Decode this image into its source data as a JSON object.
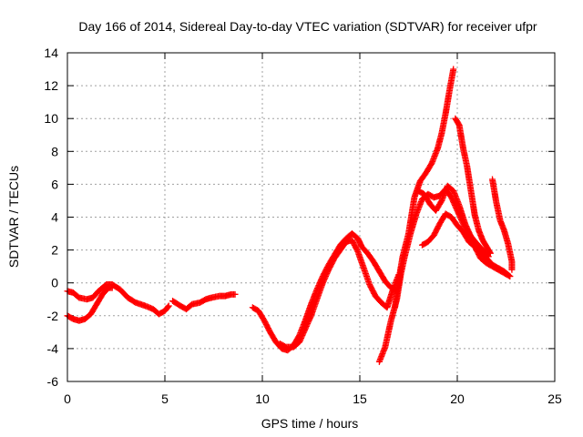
{
  "chart_data": {
    "type": "scatter",
    "title": "Day 166 of 2014, Sidereal Day-to-day VTEC variation (SDTVAR) for receiver ufpr",
    "xlabel": "GPS time / hours",
    "ylabel": "SDTVAR / TECUs",
    "xlim": [
      0,
      25
    ],
    "ylim": [
      -6,
      14
    ],
    "x_ticks": [
      "0",
      "5",
      "10",
      "15",
      "20",
      "25"
    ],
    "y_ticks": [
      "-6",
      "-4",
      "-2",
      "0",
      "2",
      "4",
      "6",
      "8",
      "10",
      "12",
      "14"
    ],
    "x_tick_values": [
      0,
      5,
      10,
      15,
      20,
      25
    ],
    "y_tick_values": [
      -6,
      -4,
      -2,
      0,
      2,
      4,
      6,
      8,
      10,
      12,
      14
    ],
    "grid": true,
    "marker": "+",
    "series": [
      {
        "color": "#ff0000",
        "segments": [
          [
            [
              0.0,
              -0.5
            ],
            [
              0.3,
              -0.6
            ],
            [
              0.6,
              -0.9
            ],
            [
              1.0,
              -1.0
            ],
            [
              1.3,
              -0.9
            ],
            [
              1.6,
              -0.5
            ],
            [
              2.0,
              -0.1
            ],
            [
              2.3,
              -0.1
            ],
            [
              2.7,
              -0.4
            ],
            [
              3.1,
              -0.9
            ],
            [
              3.5,
              -1.2
            ],
            [
              4.0,
              -1.4
            ],
            [
              4.4,
              -1.6
            ],
            [
              4.7,
              -1.9
            ],
            [
              5.0,
              -1.7
            ],
            [
              5.2,
              -1.4
            ]
          ],
          [
            [
              0.0,
              -2.0
            ],
            [
              0.3,
              -2.2
            ],
            [
              0.6,
              -2.3
            ],
            [
              0.9,
              -2.2
            ],
            [
              1.2,
              -1.9
            ],
            [
              1.5,
              -1.3
            ],
            [
              1.8,
              -0.7
            ],
            [
              2.1,
              -0.3
            ],
            [
              2.3,
              -0.3
            ]
          ],
          [
            [
              5.4,
              -1.1
            ],
            [
              5.8,
              -1.4
            ],
            [
              6.1,
              -1.6
            ],
            [
              6.4,
              -1.3
            ],
            [
              6.8,
              -1.2
            ],
            [
              7.1,
              -1.0
            ],
            [
              7.4,
              -0.9
            ],
            [
              7.8,
              -0.8
            ],
            [
              8.1,
              -0.8
            ],
            [
              8.4,
              -0.7
            ],
            [
              8.6,
              -0.7
            ]
          ],
          [
            [
              9.5,
              -1.5
            ],
            [
              9.8,
              -1.7
            ],
            [
              10.1,
              -2.3
            ],
            [
              10.4,
              -3.0
            ],
            [
              10.7,
              -3.6
            ],
            [
              11.0,
              -4.0
            ],
            [
              11.3,
              -4.1
            ],
            [
              11.6,
              -3.8
            ],
            [
              11.9,
              -3.2
            ],
            [
              12.2,
              -2.3
            ],
            [
              12.5,
              -1.3
            ],
            [
              12.8,
              -0.4
            ],
            [
              13.1,
              0.4
            ],
            [
              13.4,
              1.1
            ],
            [
              13.7,
              1.7
            ],
            [
              14.0,
              2.3
            ],
            [
              14.3,
              2.7
            ],
            [
              14.6,
              3.0
            ],
            [
              14.9,
              2.7
            ],
            [
              15.1,
              2.2
            ],
            [
              15.4,
              1.8
            ],
            [
              15.7,
              1.3
            ],
            [
              16.0,
              0.7
            ],
            [
              16.3,
              0.1
            ],
            [
              16.6,
              -0.3
            ],
            [
              16.9,
              -0.5
            ]
          ],
          [
            [
              10.9,
              -3.7
            ],
            [
              11.2,
              -3.9
            ],
            [
              11.6,
              -3.9
            ],
            [
              11.9,
              -3.6
            ],
            [
              12.2,
              -2.8
            ],
            [
              12.5,
              -2.0
            ],
            [
              12.8,
              -1.0
            ],
            [
              13.1,
              0.0
            ],
            [
              13.4,
              0.8
            ],
            [
              13.7,
              1.5
            ],
            [
              14.0,
              2.0
            ],
            [
              14.3,
              2.5
            ],
            [
              14.6,
              2.6
            ],
            [
              14.9,
              1.9
            ],
            [
              15.2,
              0.9
            ],
            [
              15.5,
              -0.1
            ],
            [
              15.8,
              -0.8
            ],
            [
              16.1,
              -1.2
            ],
            [
              16.4,
              -1.5
            ],
            [
              16.7,
              -0.4
            ],
            [
              17.0,
              0.5
            ]
          ],
          [
            [
              16.0,
              -4.8
            ],
            [
              16.3,
              -3.9
            ],
            [
              16.6,
              -2.3
            ],
            [
              16.9,
              -1.0
            ],
            [
              17.1,
              0.5
            ],
            [
              17.3,
              1.6
            ],
            [
              17.6,
              3.0
            ],
            [
              17.9,
              4.2
            ],
            [
              18.2,
              5.1
            ],
            [
              18.5,
              5.4
            ],
            [
              18.8,
              5.2
            ],
            [
              19.1,
              5.3
            ],
            [
              19.4,
              5.7
            ],
            [
              19.7,
              5.2
            ],
            [
              20.0,
              4.4
            ],
            [
              20.3,
              3.6
            ],
            [
              20.6,
              3.0
            ],
            [
              20.9,
              2.5
            ],
            [
              21.2,
              1.9
            ],
            [
              21.5,
              1.5
            ],
            [
              21.8,
              1.1
            ],
            [
              22.1,
              0.9
            ],
            [
              22.4,
              0.7
            ],
            [
              22.7,
              0.4
            ]
          ],
          [
            [
              16.8,
              -1.5
            ],
            [
              17.0,
              0.2
            ],
            [
              17.2,
              1.6
            ],
            [
              17.5,
              3.0
            ],
            [
              17.8,
              5.2
            ],
            [
              18.1,
              6.2
            ],
            [
              18.4,
              6.7
            ],
            [
              18.7,
              7.3
            ],
            [
              19.0,
              8.2
            ],
            [
              19.2,
              9.1
            ],
            [
              19.4,
              10.3
            ],
            [
              19.6,
              11.7
            ],
            [
              19.8,
              13.0
            ]
          ],
          [
            [
              19.9,
              10.0
            ],
            [
              20.1,
              9.6
            ],
            [
              20.3,
              8.2
            ],
            [
              20.5,
              7.1
            ],
            [
              20.7,
              5.6
            ],
            [
              20.9,
              4.1
            ],
            [
              21.1,
              3.2
            ],
            [
              21.3,
              2.6
            ],
            [
              21.5,
              2.2
            ],
            [
              21.7,
              1.8
            ]
          ],
          [
            [
              18.2,
              2.3
            ],
            [
              18.5,
              2.5
            ],
            [
              18.8,
              2.9
            ],
            [
              19.1,
              3.6
            ],
            [
              19.4,
              4.2
            ],
            [
              19.7,
              4.0
            ],
            [
              20.0,
              3.5
            ],
            [
              20.3,
              3.1
            ],
            [
              20.6,
              2.5
            ],
            [
              20.9,
              2.2
            ],
            [
              21.2,
              1.5
            ],
            [
              21.5,
              1.2
            ],
            [
              21.8,
              1.0
            ],
            [
              22.1,
              0.8
            ],
            [
              22.4,
              0.6
            ],
            [
              22.7,
              0.4
            ]
          ],
          [
            [
              18.0,
              5.6
            ],
            [
              18.3,
              5.4
            ],
            [
              18.6,
              4.8
            ],
            [
              18.9,
              4.4
            ],
            [
              19.2,
              5.0
            ],
            [
              19.5,
              5.9
            ],
            [
              19.8,
              5.6
            ],
            [
              20.1,
              4.7
            ],
            [
              20.4,
              3.6
            ],
            [
              20.7,
              2.8
            ],
            [
              21.0,
              2.4
            ],
            [
              21.3,
              2.0
            ],
            [
              21.6,
              1.6
            ]
          ],
          [
            [
              21.8,
              6.3
            ],
            [
              22.0,
              4.9
            ],
            [
              22.2,
              3.8
            ],
            [
              22.4,
              3.2
            ],
            [
              22.6,
              2.4
            ],
            [
              22.8,
              1.3
            ],
            [
              22.8,
              0.8
            ]
          ]
        ]
      }
    ]
  }
}
